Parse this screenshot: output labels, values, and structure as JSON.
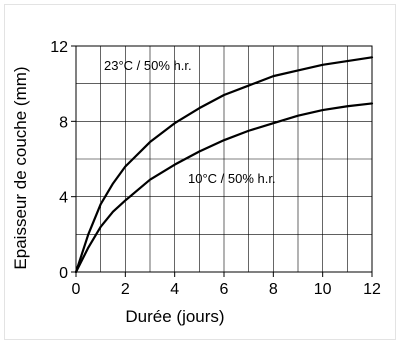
{
  "chart_data": {
    "type": "line",
    "title": "",
    "xlabel": "Durée (jours)",
    "ylabel": "Epaisseur de couche (mm)",
    "xlim": [
      0,
      12
    ],
    "ylim": [
      0,
      12
    ],
    "xticks": [
      0,
      2,
      4,
      6,
      8,
      10,
      12
    ],
    "yticks": [
      0,
      4,
      8,
      12
    ],
    "grid": true,
    "series": [
      {
        "name": "23°C / 50% h.r.",
        "x": [
          0,
          0.5,
          1,
          1.5,
          2,
          3,
          4,
          5,
          6,
          7,
          8,
          9,
          10,
          11,
          12
        ],
        "y": [
          0,
          2.0,
          3.6,
          4.7,
          5.6,
          6.9,
          7.9,
          8.7,
          9.4,
          9.9,
          10.4,
          10.7,
          11.0,
          11.2,
          11.4
        ]
      },
      {
        "name": "10°C / 50% h.r.",
        "x": [
          0,
          0.5,
          1,
          1.5,
          2,
          3,
          4,
          5,
          6,
          7,
          8,
          9,
          10,
          11,
          12
        ],
        "y": [
          0,
          1.3,
          2.4,
          3.2,
          3.8,
          4.9,
          5.7,
          6.4,
          7.0,
          7.5,
          7.9,
          8.3,
          8.6,
          8.8,
          8.95
        ]
      }
    ]
  }
}
